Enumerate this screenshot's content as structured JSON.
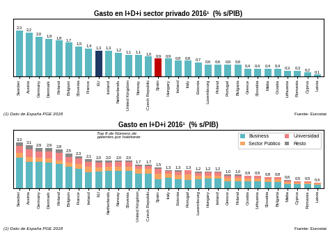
{
  "chart_data": [
    {
      "type": "bar",
      "title": "Gasto en I+D+i sector privado 2016¹  (% s/PIB)",
      "annotations": [
        "(1) Dato de España PGE 2018",
        "Fuente: Eurostat"
      ],
      "categories": [
        "Sweden",
        "Austria",
        "Germany",
        "Denmark",
        "Finland",
        "Belgium",
        "Slovenia",
        "France",
        "EU",
        "Iceland",
        "Netherlands",
        "United Kingdom",
        "Norway",
        "Czech Republic",
        "Spain",
        "Hungary",
        "Ireland",
        "Italy",
        "Estonia",
        "Luxembourg",
        "Poland",
        "Portugal",
        "Bulgaria",
        "Greece",
        "Slovakia",
        "Malta",
        "Croatia",
        "Lithuania",
        "Romania",
        "Cyprus",
        "Latvia"
      ],
      "values": [
        2.3,
        2.2,
        2.0,
        1.9,
        1.8,
        1.7,
        1.5,
        1.4,
        1.3,
        1.3,
        1.2,
        1.1,
        1.1,
        1.0,
        0.9,
        0.9,
        0.8,
        0.8,
        0.7,
        0.6,
        0.6,
        0.6,
        0.6,
        0.4,
        0.4,
        0.4,
        0.4,
        0.3,
        0.3,
        0.2,
        0.1
      ],
      "value_labels": [
        "2,3",
        "2,2",
        "2,0",
        "1,9",
        "1,8",
        "1,7",
        "1,5",
        "1,4",
        "1,3",
        "1,3",
        "1,2",
        "1,1",
        "1,1",
        "1,0",
        "0,9",
        "0,9",
        "0,8",
        "0,8",
        "0,7",
        "0,6",
        "0,6",
        "0,6",
        "0,6",
        "0,4",
        "0,4",
        "0,4",
        "0,4",
        "0,3",
        "0,3",
        "0,2",
        "0,1"
      ],
      "colors": [
        "#5BB8C1",
        "#5BB8C1",
        "#5BB8C1",
        "#5BB8C1",
        "#5BB8C1",
        "#5BB8C1",
        "#5BB8C1",
        "#5BB8C1",
        "#1F3864",
        "#5BB8C1",
        "#5BB8C1",
        "#5BB8C1",
        "#5BB8C1",
        "#5BB8C1",
        "#C00000",
        "#5BB8C1",
        "#5BB8C1",
        "#5BB8C1",
        "#5BB8C1",
        "#5BB8C1",
        "#5BB8C1",
        "#5BB8C1",
        "#5BB8C1",
        "#5BB8C1",
        "#5BB8C1",
        "#5BB8C1",
        "#5BB8C1",
        "#5BB8C1",
        "#5BB8C1",
        "#5BB8C1",
        "#5BB8C1"
      ],
      "ylim": [
        0,
        2.9
      ],
      "data_labels": true,
      "tick_labels": "x"
    },
    {
      "type": "bar",
      "stacked": true,
      "title": "Gasto en I+D+i 2016¹  (% s/PIB)",
      "annotations": [
        "(1) Dato de España PGE 2018",
        "Fuente: Eurostat",
        "Top 8 de Número de\npatentes por habitante"
      ],
      "categories": [
        "Sweden",
        "Austria",
        "Germany",
        "Denmark",
        "Finland",
        "Belgium",
        "France",
        "Ireland",
        "EU",
        "Netherlands",
        "Norway",
        "Slovenia",
        "United Kingdom",
        "Czech Republic",
        "Spain",
        "Italy",
        "Estonia",
        "Portugal",
        "Luxembourg",
        "Hungary",
        "Ireland",
        "Greece",
        "Poland",
        "Croatia",
        "Lithuania",
        "Slovakia",
        "Bulgaria",
        "Malta",
        "Cyprus",
        "Romania",
        "Latvia"
      ],
      "series": [
        {
          "name": "Business",
          "color": "#5BB8C1",
          "values": [
            2.2,
            1.9,
            1.9,
            1.85,
            1.75,
            1.55,
            1.4,
            1.15,
            1.2,
            1.25,
            1.25,
            1.25,
            1.05,
            1.05,
            0.62,
            0.72,
            0.65,
            0.58,
            0.65,
            0.68,
            0.68,
            0.5,
            0.5,
            0.48,
            0.48,
            0.42,
            0.42,
            0.3,
            0.28,
            0.28,
            0.22
          ]
        },
        {
          "name": "Sector Público",
          "color": "#F4A460",
          "values": [
            0.32,
            0.35,
            0.3,
            0.3,
            0.25,
            0.28,
            0.35,
            0.38,
            0.27,
            0.27,
            0.27,
            0.27,
            0.32,
            0.32,
            0.42,
            0.3,
            0.3,
            0.42,
            0.22,
            0.22,
            0.22,
            0.22,
            0.22,
            0.22,
            0.22,
            0.22,
            0.22,
            0.12,
            0.12,
            0.12,
            0.1
          ]
        },
        {
          "name": "Universidad",
          "color": "#F08080",
          "values": [
            0.5,
            0.55,
            0.45,
            0.5,
            0.55,
            0.42,
            0.38,
            0.38,
            0.35,
            0.32,
            0.38,
            0.38,
            0.22,
            0.22,
            0.35,
            0.22,
            0.22,
            0.28,
            0.22,
            0.22,
            0.22,
            0.18,
            0.18,
            0.16,
            0.16,
            0.12,
            0.12,
            0.12,
            0.07,
            0.07,
            0.06
          ]
        },
        {
          "name": "Resto",
          "color": "#888888",
          "values": [
            0.28,
            0.31,
            0.25,
            0.25,
            0.25,
            0.25,
            0.17,
            0.19,
            0.18,
            0.16,
            0.1,
            0.1,
            0.11,
            0.11,
            0.11,
            0.06,
            0.13,
            0.02,
            0.11,
            0.08,
            0.08,
            0.1,
            0.1,
            0.04,
            0.04,
            0.04,
            0.04,
            0.06,
            0.03,
            0.03,
            0.02
          ]
        }
      ],
      "totals": [
        3.3,
        3.1,
        2.9,
        2.9,
        2.8,
        2.5,
        2.3,
        2.1,
        2.0,
        2.0,
        2.0,
        2.0,
        1.7,
        1.7,
        1.5,
        1.3,
        1.3,
        1.3,
        1.2,
        1.2,
        1.2,
        1.0,
        1.0,
        0.9,
        0.9,
        0.8,
        0.8,
        0.6,
        0.5,
        0.5,
        0.4
      ],
      "total_labels": [
        "3,3",
        "3,1",
        "2,9",
        "2,9",
        "2,8",
        "2,5",
        "2,3",
        "2,1",
        "2,0",
        "2,0",
        "2,0",
        "2,0",
        "1,7",
        "1,7",
        "1,5",
        "1,3",
        "1,3",
        "1,3",
        "1,2",
        "1,2",
        "1,2",
        "1,0",
        "1,0",
        "0,9",
        "0,9",
        "0,8",
        "0,8",
        "0,6",
        "0,5",
        "0,5",
        "0,4"
      ],
      "ylim": [
        0,
        4.2
      ],
      "data_labels": true,
      "legend": "upper right",
      "tick_labels": "x"
    }
  ]
}
